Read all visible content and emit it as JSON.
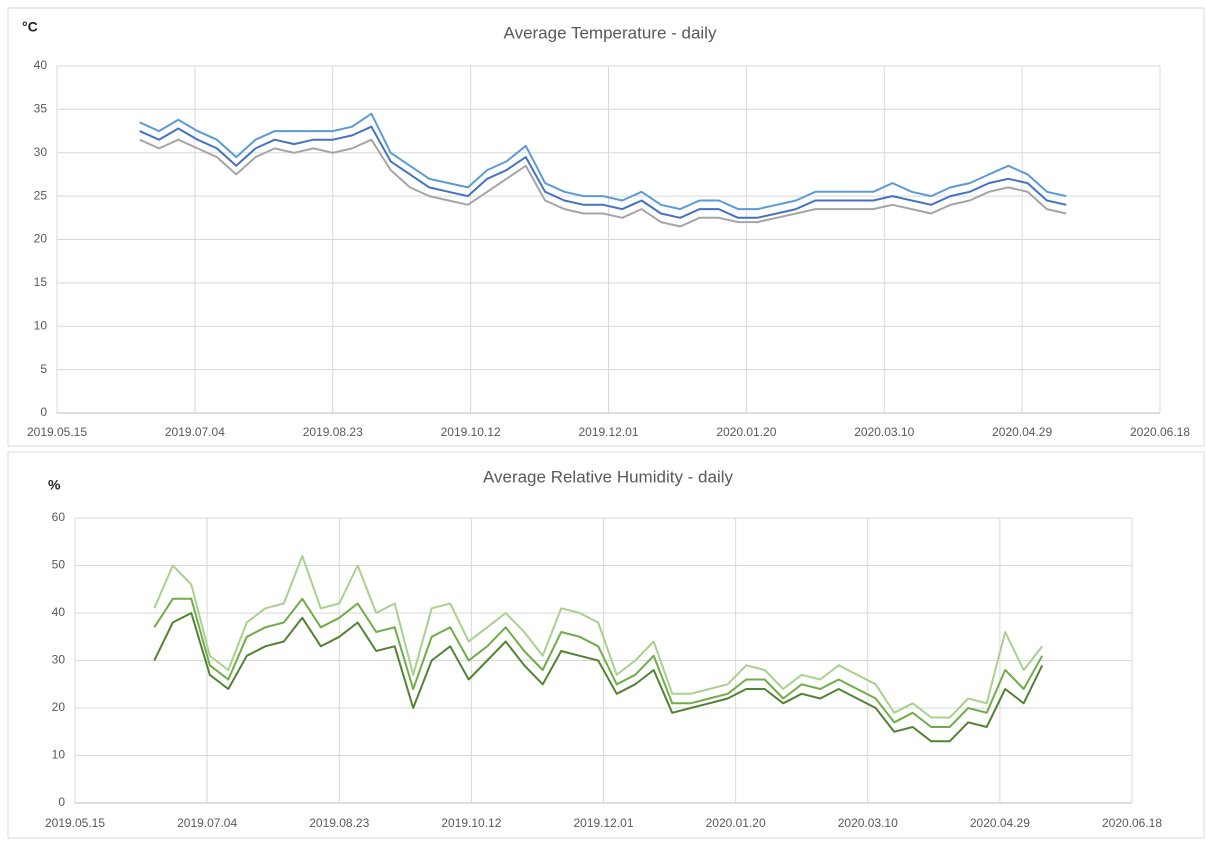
{
  "chart_data": [
    {
      "type": "line",
      "title": "Average Temperature - daily",
      "ylabel": "°C",
      "x": [
        "2019.06.14",
        "2019.06.21",
        "2019.06.28",
        "2019.07.05",
        "2019.07.12",
        "2019.07.19",
        "2019.07.26",
        "2019.08.02",
        "2019.08.09",
        "2019.08.16",
        "2019.08.23",
        "2019.08.30",
        "2019.09.06",
        "2019.09.13",
        "2019.09.20",
        "2019.09.27",
        "2019.10.04",
        "2019.10.11",
        "2019.10.18",
        "2019.10.25",
        "2019.11.01",
        "2019.11.08",
        "2019.11.15",
        "2019.11.22",
        "2019.11.29",
        "2019.12.06",
        "2019.12.13",
        "2019.12.20",
        "2019.12.27",
        "2020.01.03",
        "2020.01.10",
        "2020.01.17",
        "2020.01.24",
        "2020.01.31",
        "2020.02.07",
        "2020.02.14",
        "2020.02.21",
        "2020.02.28",
        "2020.03.06",
        "2020.03.13",
        "2020.03.20",
        "2020.03.27",
        "2020.04.03",
        "2020.04.10",
        "2020.04.17",
        "2020.04.24",
        "2020.05.01",
        "2020.05.08",
        "2020.05.15"
      ],
      "series": [
        {
          "color": "#5b9bd5",
          "values": [
            33.5,
            32.5,
            33.8,
            32.5,
            31.5,
            29.5,
            31.5,
            32.5,
            32.5,
            32.5,
            32.5,
            33,
            34.5,
            30,
            28.5,
            27,
            26.5,
            26,
            28,
            29,
            30.8,
            26.5,
            25.5,
            25,
            25,
            24.5,
            25.5,
            24,
            23.5,
            24.5,
            24.5,
            23.5,
            23.5,
            24,
            24.5,
            25.5,
            25.5,
            25.5,
            25.5,
            26.5,
            25.5,
            25,
            26,
            26.5,
            27.5,
            28.5,
            27.5,
            25.5,
            25
          ]
        },
        {
          "color": "#4472c4",
          "values": [
            32.5,
            31.5,
            32.8,
            31.5,
            30.5,
            28.5,
            30.5,
            31.5,
            31,
            31.5,
            31.5,
            32,
            33,
            29,
            27.5,
            26,
            25.5,
            25,
            27,
            28,
            29.5,
            25.5,
            24.5,
            24,
            24,
            23.5,
            24.5,
            23,
            22.5,
            23.5,
            23.5,
            22.5,
            22.5,
            23,
            23.5,
            24.5,
            24.5,
            24.5,
            24.5,
            25,
            24.5,
            24,
            25,
            25.5,
            26.5,
            27,
            26.5,
            24.5,
            24
          ]
        },
        {
          "color": "#a5a5a5",
          "values": [
            31.5,
            30.5,
            31.5,
            30.5,
            29.5,
            27.5,
            29.5,
            30.5,
            30,
            30.5,
            30,
            30.5,
            31.5,
            28,
            26,
            25,
            24.5,
            24,
            25.5,
            27,
            28.5,
            24.5,
            23.5,
            23,
            23,
            22.5,
            23.5,
            22,
            21.5,
            22.5,
            22.5,
            22,
            22,
            22.5,
            23,
            23.5,
            23.5,
            23.5,
            23.5,
            24,
            23.5,
            23,
            24,
            24.5,
            25.5,
            26,
            25.5,
            23.5,
            23
          ]
        }
      ],
      "xlim": [
        "2019.05.15",
        "2020.06.18"
      ],
      "xticks": [
        "2019.05.15",
        "2019.07.04",
        "2019.08.23",
        "2019.10.12",
        "2019.12.01",
        "2020.01.20",
        "2020.03.10",
        "2020.04.29",
        "2020.06.18"
      ],
      "ylim": [
        0,
        40
      ],
      "yticks": [
        0,
        5,
        10,
        15,
        20,
        25,
        30,
        35,
        40
      ],
      "grid": true
    },
    {
      "type": "line",
      "title": "Average Relative Humidity - daily",
      "ylabel": "%",
      "x": [
        "2019.06.14",
        "2019.06.21",
        "2019.06.28",
        "2019.07.05",
        "2019.07.12",
        "2019.07.19",
        "2019.07.26",
        "2019.08.02",
        "2019.08.09",
        "2019.08.16",
        "2019.08.23",
        "2019.08.30",
        "2019.09.06",
        "2019.09.13",
        "2019.09.20",
        "2019.09.27",
        "2019.10.04",
        "2019.10.11",
        "2019.10.18",
        "2019.10.25",
        "2019.11.01",
        "2019.11.08",
        "2019.11.15",
        "2019.11.22",
        "2019.11.29",
        "2019.12.06",
        "2019.12.13",
        "2019.12.20",
        "2019.12.27",
        "2020.01.03",
        "2020.01.10",
        "2020.01.17",
        "2020.01.24",
        "2020.01.31",
        "2020.02.07",
        "2020.02.14",
        "2020.02.21",
        "2020.02.28",
        "2020.03.06",
        "2020.03.13",
        "2020.03.20",
        "2020.03.27",
        "2020.04.03",
        "2020.04.10",
        "2020.04.17",
        "2020.04.24",
        "2020.05.01",
        "2020.05.08",
        "2020.05.15"
      ],
      "series": [
        {
          "color": "#a9d18e",
          "values": [
            41,
            50,
            46,
            31,
            28,
            38,
            41,
            42,
            52,
            41,
            42,
            50,
            40,
            42,
            27,
            41,
            42,
            34,
            37,
            40,
            36,
            31,
            41,
            40,
            38,
            27,
            30,
            34,
            23,
            23,
            24,
            25,
            29,
            28,
            24,
            27,
            26,
            29,
            27,
            25,
            19,
            21,
            18,
            18,
            22,
            21,
            36,
            28,
            33
          ]
        },
        {
          "color": "#70ad47",
          "values": [
            37,
            43,
            43,
            29,
            26,
            35,
            37,
            38,
            43,
            37,
            39,
            42,
            36,
            37,
            24,
            35,
            37,
            30,
            33,
            37,
            32,
            28,
            36,
            35,
            33,
            25,
            27,
            31,
            21,
            21,
            22,
            23,
            26,
            26,
            22,
            25,
            24,
            26,
            24,
            22,
            17,
            19,
            16,
            16,
            20,
            19,
            28,
            24,
            31
          ]
        },
        {
          "color": "#548235",
          "values": [
            30,
            38,
            40,
            27,
            24,
            31,
            33,
            34,
            39,
            33,
            35,
            38,
            32,
            33,
            20,
            30,
            33,
            26,
            30,
            34,
            29,
            25,
            32,
            31,
            30,
            23,
            25,
            28,
            19,
            20,
            21,
            22,
            24,
            24,
            21,
            23,
            22,
            24,
            22,
            20,
            15,
            16,
            13,
            13,
            17,
            16,
            24,
            21,
            29
          ]
        }
      ],
      "xlim": [
        "2019.05.15",
        "2020.06.18"
      ],
      "xticks": [
        "2019.05.15",
        "2019.07.04",
        "2019.08.23",
        "2019.10.12",
        "2019.12.01",
        "2020.01.20",
        "2020.03.10",
        "2020.04.29",
        "2020.06.18"
      ],
      "ylim": [
        0,
        60
      ],
      "yticks": [
        0,
        10,
        20,
        30,
        40,
        50,
        60
      ],
      "grid": true
    }
  ]
}
